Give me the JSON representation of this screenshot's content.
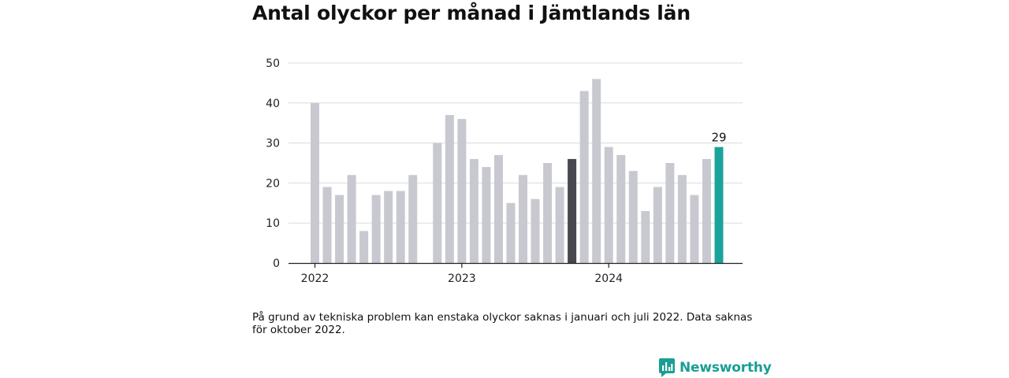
{
  "title": "Antal olyckor per månad i Jämtlands län",
  "note": "På grund av tekniska problem kan enstaka olyckor saknas i januari och juli 2022. Data saknas för oktober 2022.",
  "brand": {
    "name": "Newsworthy",
    "icon": "newsworthy-chart-logo-icon",
    "color": "#1a9e94"
  },
  "chart_data": {
    "type": "bar",
    "ylim": [
      0,
      50
    ],
    "yticks": [
      0,
      10,
      20,
      30,
      40,
      50
    ],
    "xticks": [
      {
        "label": "2022",
        "index": 0
      },
      {
        "label": "2023",
        "index": 12
      },
      {
        "label": "2024",
        "index": 24
      }
    ],
    "grid": true,
    "colors": {
      "default": "#c8c8d0",
      "highlight": "#474750",
      "latest": "#1aa39a"
    },
    "bars": [
      {
        "month": "2022-01",
        "value": 40
      },
      {
        "month": "2022-02",
        "value": 19
      },
      {
        "month": "2022-03",
        "value": 17
      },
      {
        "month": "2022-04",
        "value": 22
      },
      {
        "month": "2022-05",
        "value": 8
      },
      {
        "month": "2022-06",
        "value": 17
      },
      {
        "month": "2022-07",
        "value": 18
      },
      {
        "month": "2022-08",
        "value": 18
      },
      {
        "month": "2022-09",
        "value": 22
      },
      {
        "month": "2022-10",
        "value": null
      },
      {
        "month": "2022-11",
        "value": 30
      },
      {
        "month": "2022-12",
        "value": 37
      },
      {
        "month": "2023-01",
        "value": 36
      },
      {
        "month": "2023-02",
        "value": 26
      },
      {
        "month": "2023-03",
        "value": 24
      },
      {
        "month": "2023-04",
        "value": 27
      },
      {
        "month": "2023-05",
        "value": 15
      },
      {
        "month": "2023-06",
        "value": 22
      },
      {
        "month": "2023-07",
        "value": 16
      },
      {
        "month": "2023-08",
        "value": 25
      },
      {
        "month": "2023-09",
        "value": 19
      },
      {
        "month": "2023-10",
        "value": 26,
        "highlight": true
      },
      {
        "month": "2023-11",
        "value": 43
      },
      {
        "month": "2023-12",
        "value": 46
      },
      {
        "month": "2024-01",
        "value": 29
      },
      {
        "month": "2024-02",
        "value": 27
      },
      {
        "month": "2024-03",
        "value": 23
      },
      {
        "month": "2024-04",
        "value": 13
      },
      {
        "month": "2024-05",
        "value": 19
      },
      {
        "month": "2024-06",
        "value": 25
      },
      {
        "month": "2024-07",
        "value": 22
      },
      {
        "month": "2024-08",
        "value": 17
      },
      {
        "month": "2024-09",
        "value": 26
      },
      {
        "month": "2024-10",
        "value": 29,
        "latest": true,
        "label": "29"
      }
    ]
  }
}
